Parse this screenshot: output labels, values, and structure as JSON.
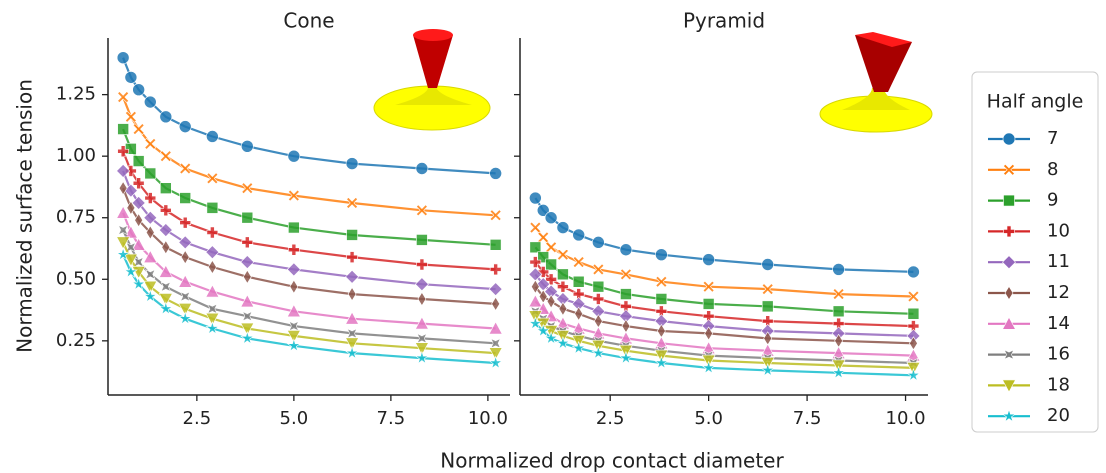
{
  "chart_data": [
    {
      "type": "line",
      "title": "Cone",
      "xlabel": "Normalized drop contact diameter",
      "ylabel": "Normalized surface tension",
      "legend_title": "Half angle",
      "legend": "right",
      "x": [
        0.6,
        0.8,
        1.0,
        1.3,
        1.7,
        2.2,
        2.9,
        3.8,
        5.0,
        6.5,
        8.3,
        10.2
      ],
      "xlim": [
        0.21,
        10.57
      ],
      "ylim": [
        0.03,
        1.48
      ],
      "xticks": [
        2.5,
        {
          "value": 5,
          "label": "5.0"
        },
        7.5,
        {
          "value": 10,
          "label": "10.0"
        }
      ],
      "yticks": [
        0.25,
        {
          "value": 0.5,
          "label": "0.50"
        },
        0.75,
        {
          "value": 1,
          "label": "1.00"
        },
        1.25
      ],
      "series": [
        {
          "name": "7",
          "color": "#1f77b4",
          "marker": "o",
          "values": [
            1.4,
            1.32,
            1.27,
            1.22,
            1.16,
            1.12,
            1.08,
            1.04,
            1.0,
            0.97,
            0.95,
            0.93
          ]
        },
        {
          "name": "8",
          "color": "#ff7f0e",
          "marker": "X",
          "values": [
            1.24,
            1.16,
            1.11,
            1.05,
            1.0,
            0.95,
            0.91,
            0.87,
            0.84,
            0.81,
            0.78,
            0.76
          ]
        },
        {
          "name": "9",
          "color": "#2ca02c",
          "marker": "s",
          "values": [
            1.11,
            1.03,
            0.98,
            0.93,
            0.87,
            0.83,
            0.79,
            0.75,
            0.71,
            0.68,
            0.66,
            0.64
          ]
        },
        {
          "name": "10",
          "color": "#d62728",
          "marker": "P",
          "values": [
            1.02,
            0.94,
            0.89,
            0.83,
            0.78,
            0.73,
            0.69,
            0.65,
            0.62,
            0.59,
            0.56,
            0.54
          ]
        },
        {
          "name": "11",
          "color": "#9467bd",
          "marker": "D",
          "values": [
            0.94,
            0.86,
            0.81,
            0.75,
            0.7,
            0.65,
            0.61,
            0.57,
            0.54,
            0.51,
            0.48,
            0.46
          ]
        },
        {
          "name": "12",
          "color": "#8c564b",
          "marker": "d",
          "values": [
            0.87,
            0.79,
            0.74,
            0.69,
            0.63,
            0.59,
            0.55,
            0.51,
            0.47,
            0.44,
            0.42,
            0.4
          ]
        },
        {
          "name": "14",
          "color": "#e377c2",
          "marker": "^",
          "values": [
            0.77,
            0.69,
            0.64,
            0.59,
            0.53,
            0.49,
            0.45,
            0.41,
            0.37,
            0.34,
            0.32,
            0.3
          ]
        },
        {
          "name": "16",
          "color": "#7f7f7f",
          "marker": "x",
          "values": [
            0.7,
            0.63,
            0.57,
            0.52,
            0.47,
            0.43,
            0.38,
            0.35,
            0.31,
            0.28,
            0.26,
            0.24
          ]
        },
        {
          "name": "18",
          "color": "#bcbd22",
          "marker": "v",
          "values": [
            0.65,
            0.58,
            0.53,
            0.47,
            0.42,
            0.38,
            0.34,
            0.3,
            0.27,
            0.24,
            0.22,
            0.2
          ]
        },
        {
          "name": "20",
          "color": "#17becf",
          "marker": "*",
          "values": [
            0.6,
            0.53,
            0.48,
            0.43,
            0.38,
            0.34,
            0.3,
            0.26,
            0.23,
            0.2,
            0.18,
            0.16
          ]
        }
      ]
    },
    {
      "type": "line",
      "title": "Pyramid",
      "x": [
        0.6,
        0.8,
        1.0,
        1.3,
        1.7,
        2.2,
        2.9,
        3.8,
        5.0,
        6.5,
        8.3,
        10.2
      ],
      "xlim": [
        0.21,
        10.57
      ],
      "ylim": [
        0.03,
        1.48
      ],
      "xticks": [
        2.5,
        {
          "value": 5,
          "label": "5.0"
        },
        7.5,
        {
          "value": 10,
          "label": "10.0"
        }
      ],
      "series": [
        {
          "color": "#1f77b4",
          "marker": "o",
          "values": [
            0.83,
            0.78,
            0.75,
            0.71,
            0.68,
            0.65,
            0.62,
            0.6,
            0.58,
            0.56,
            0.54,
            0.53
          ]
        },
        {
          "color": "#ff7f0e",
          "marker": "X",
          "values": [
            0.71,
            0.67,
            0.63,
            0.6,
            0.57,
            0.54,
            0.52,
            0.49,
            0.47,
            0.46,
            0.44,
            0.43
          ]
        },
        {
          "color": "#2ca02c",
          "marker": "s",
          "values": [
            0.63,
            0.59,
            0.56,
            0.52,
            0.49,
            0.47,
            0.44,
            0.42,
            0.4,
            0.39,
            0.37,
            0.36
          ]
        },
        {
          "color": "#d62728",
          "marker": "P",
          "values": [
            0.57,
            0.53,
            0.5,
            0.47,
            0.44,
            0.42,
            0.39,
            0.37,
            0.35,
            0.33,
            0.32,
            0.31
          ]
        },
        {
          "color": "#9467bd",
          "marker": "D",
          "values": [
            0.52,
            0.48,
            0.45,
            0.42,
            0.4,
            0.37,
            0.35,
            0.33,
            0.31,
            0.29,
            0.28,
            0.27
          ]
        },
        {
          "color": "#8c564b",
          "marker": "d",
          "values": [
            0.47,
            0.43,
            0.41,
            0.38,
            0.36,
            0.33,
            0.31,
            0.29,
            0.28,
            0.26,
            0.25,
            0.24
          ]
        },
        {
          "color": "#e377c2",
          "marker": "^",
          "values": [
            0.41,
            0.38,
            0.35,
            0.32,
            0.3,
            0.28,
            0.26,
            0.24,
            0.22,
            0.21,
            0.2,
            0.19
          ]
        },
        {
          "color": "#7f7f7f",
          "marker": "x",
          "values": [
            0.37,
            0.34,
            0.31,
            0.29,
            0.27,
            0.25,
            0.23,
            0.21,
            0.19,
            0.18,
            0.17,
            0.16
          ]
        },
        {
          "color": "#bcbd22",
          "marker": "v",
          "values": [
            0.35,
            0.32,
            0.29,
            0.27,
            0.25,
            0.23,
            0.21,
            0.19,
            0.17,
            0.16,
            0.15,
            0.14
          ]
        },
        {
          "color": "#17becf",
          "marker": "*",
          "values": [
            0.32,
            0.29,
            0.26,
            0.24,
            0.22,
            0.2,
            0.18,
            0.16,
            0.14,
            0.13,
            0.12,
            0.11
          ]
        }
      ]
    }
  ]
}
